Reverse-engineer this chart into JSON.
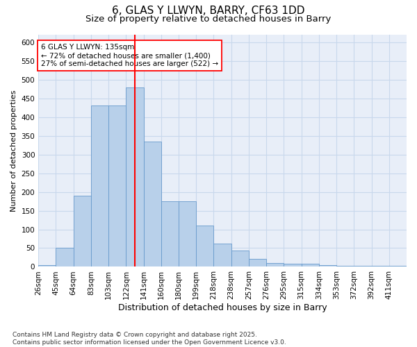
{
  "title": "6, GLAS Y LLWYN, BARRY, CF63 1DD",
  "subtitle": "Size of property relative to detached houses in Barry",
  "xlabel": "Distribution of detached houses by size in Barry",
  "ylabel": "Number of detached properties",
  "categories": [
    "26sqm",
    "45sqm",
    "64sqm",
    "83sqm",
    "103sqm",
    "122sqm",
    "141sqm",
    "160sqm",
    "180sqm",
    "199sqm",
    "218sqm",
    "238sqm",
    "257sqm",
    "276sqm",
    "295sqm",
    "315sqm",
    "334sqm",
    "353sqm",
    "372sqm",
    "392sqm",
    "411sqm"
  ],
  "hist_values": [
    5,
    50,
    190,
    430,
    430,
    480,
    335,
    175,
    175,
    110,
    62,
    43,
    22,
    10,
    8,
    8,
    5,
    3,
    3,
    2,
    2
  ],
  "bar_color": "#b8d0ea",
  "bar_edge_color": "#6699cc",
  "vline_x": 5.5,
  "vline_color": "red",
  "annotation_text": "6 GLAS Y LLWYN: 135sqm\n← 72% of detached houses are smaller (1,400)\n27% of semi-detached houses are larger (522) →",
  "annotation_box_color": "white",
  "annotation_box_edge": "red",
  "grid_color": "#c8d8ec",
  "background_color": "#e8eef8",
  "ylim": [
    0,
    620
  ],
  "yticks": [
    0,
    50,
    100,
    150,
    200,
    250,
    300,
    350,
    400,
    450,
    500,
    550,
    600
  ],
  "footer": "Contains HM Land Registry data © Crown copyright and database right 2025.\nContains public sector information licensed under the Open Government Licence v3.0.",
  "title_fontsize": 11,
  "subtitle_fontsize": 9.5,
  "xlabel_fontsize": 9,
  "ylabel_fontsize": 8,
  "tick_fontsize": 7.5,
  "footer_fontsize": 6.5
}
